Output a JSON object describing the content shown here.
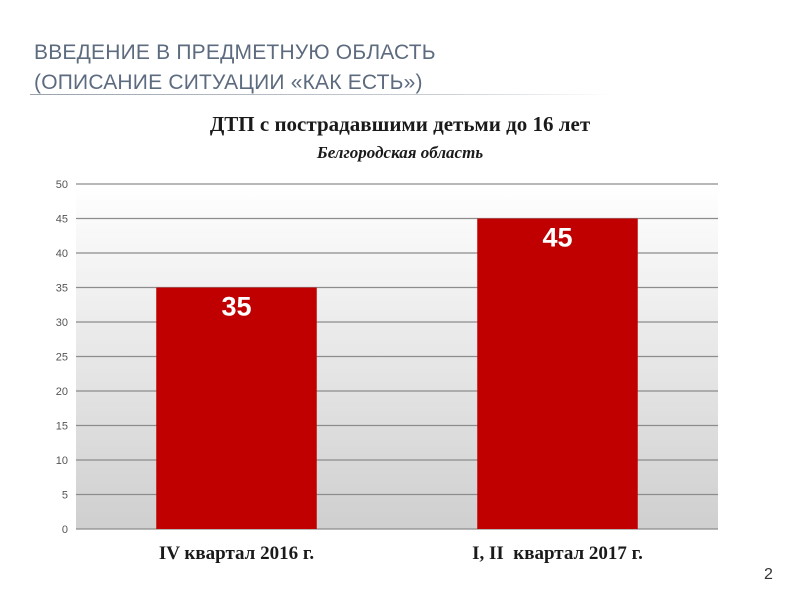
{
  "slide": {
    "title_line1": "ВВЕДЕНИЕ В ПРЕДМЕТНУЮ ОБЛАСТЬ",
    "title_line2": "(ОПИСАНИЕ СИТУАЦИИ «КАК ЕСТЬ»)",
    "page_number": "2"
  },
  "chart_data": {
    "type": "bar",
    "title": "ДТП с пострадавшими детьми до 16 лет",
    "subtitle": "Белгородская область",
    "categories": [
      "IV квартал 2016 г.",
      "I, II  квартал 2017 г."
    ],
    "values": [
      35,
      45
    ],
    "value_labels": [
      "35",
      "45"
    ],
    "ylim": [
      0,
      50
    ],
    "yticks": [
      0,
      5,
      10,
      15,
      20,
      25,
      30,
      35,
      40,
      45,
      50
    ],
    "grid": true,
    "xlabel": "",
    "ylabel": "",
    "bar_color": "#c00000",
    "label_color": "#ffffff"
  }
}
